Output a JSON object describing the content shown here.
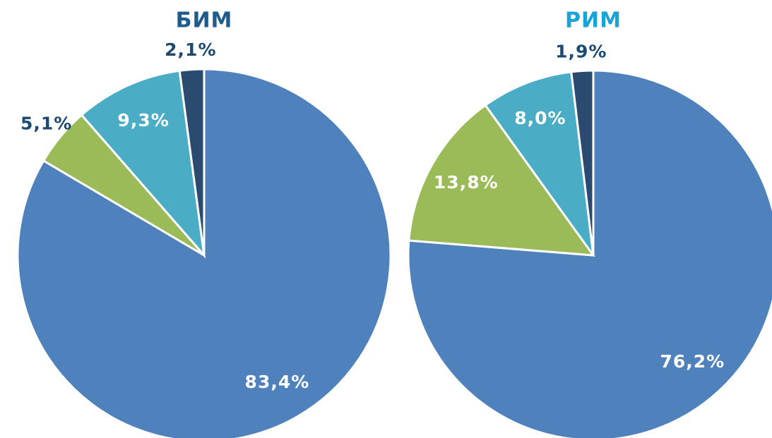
{
  "chart_data": [
    {
      "type": "pie",
      "title": "БИМ",
      "title_color": "#1f5c8c",
      "values": [
        83.4,
        5.1,
        9.3,
        2.1
      ],
      "value_labels": [
        "83,4%",
        "5,1%",
        "9,3%",
        "2,1%"
      ],
      "colors": [
        "#4f81bd",
        "#9bbb59",
        "#4bacc6",
        "#2b4a70"
      ]
    },
    {
      "type": "pie",
      "title": "РИМ",
      "title_color": "#1aa3d6",
      "values": [
        76.2,
        13.8,
        8.0,
        1.9
      ],
      "value_labels": [
        "76,2%",
        "13,8%",
        "8,0%",
        "1,9%"
      ],
      "colors": [
        "#4f81bd",
        "#9bbb59",
        "#4bacc6",
        "#2b4a70"
      ]
    }
  ]
}
